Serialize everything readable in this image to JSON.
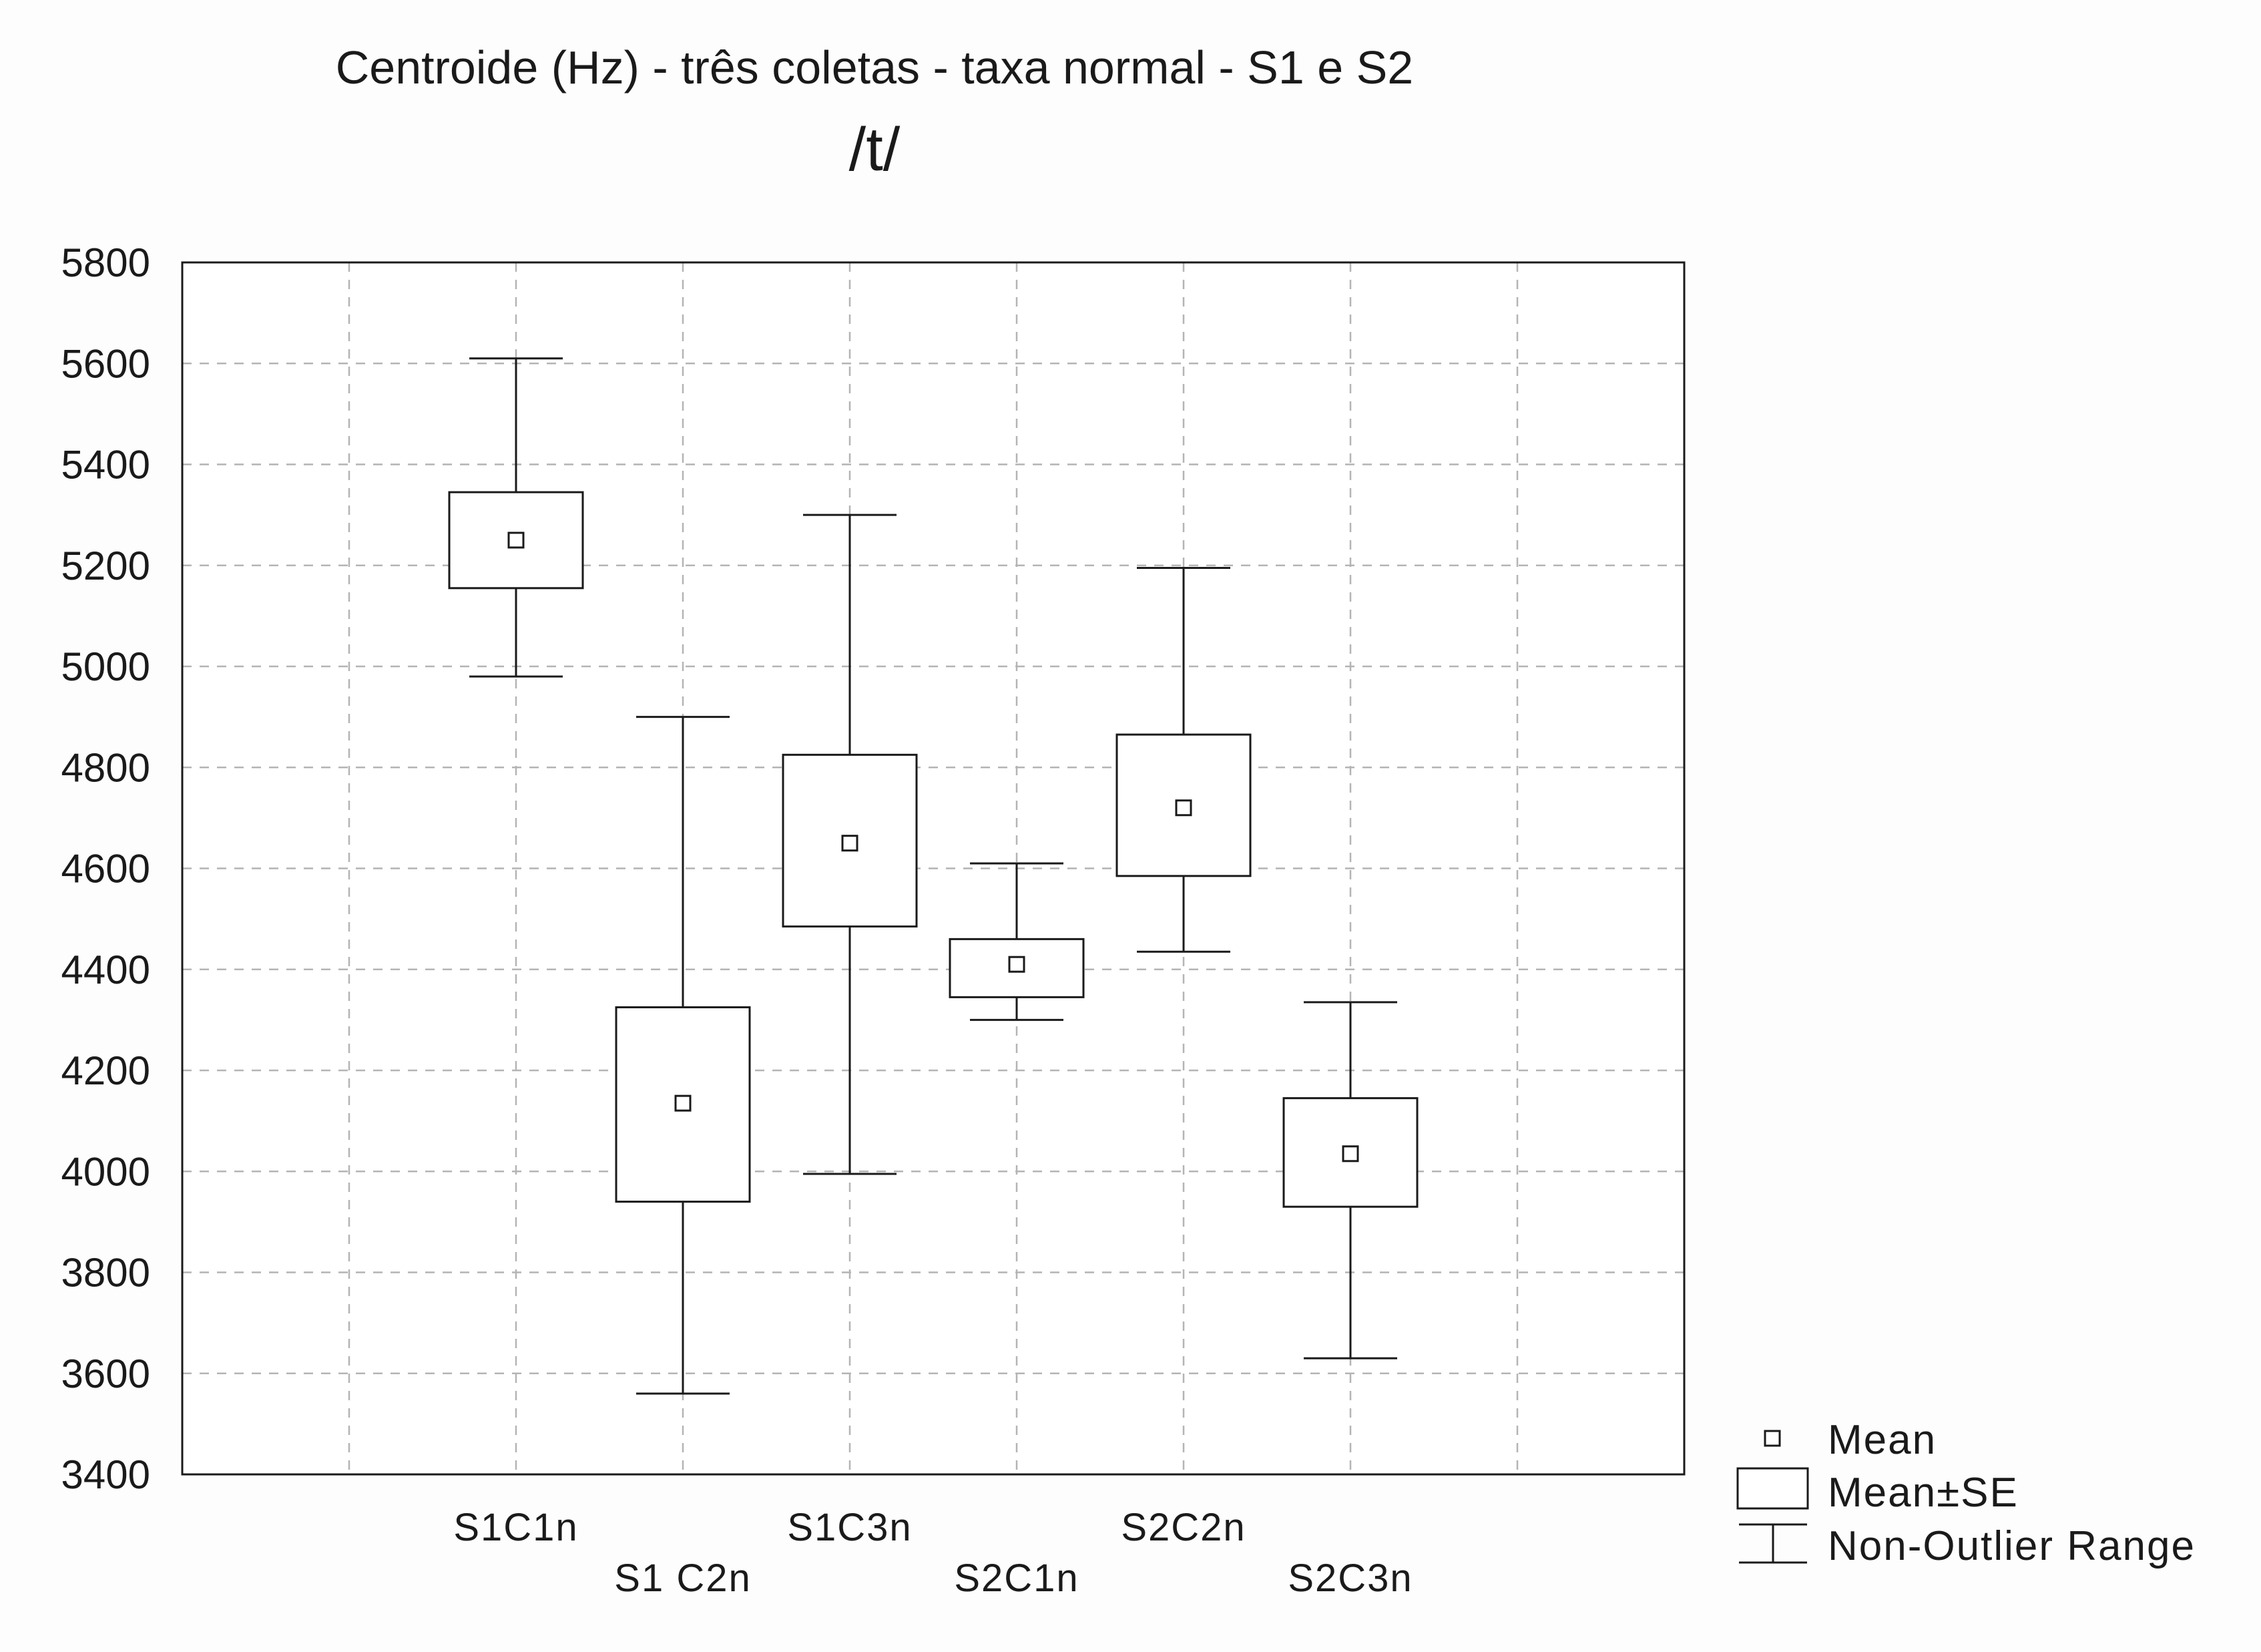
{
  "chart_data": {
    "type": "boxplot",
    "title": "Centroide (Hz) - três coletas - taxa normal - S1 e S2",
    "subtitle": "/t/",
    "xlabel": "",
    "ylabel": "",
    "ylim": [
      3400,
      5800
    ],
    "yticks": [
      3400,
      3600,
      3800,
      4000,
      4200,
      4400,
      4600,
      4800,
      5000,
      5200,
      5400,
      5600,
      5800
    ],
    "grid": true,
    "legend_position": "bottom-right",
    "categories": [
      "S1C1n",
      "S1 C2n",
      "S1C3n",
      "S2C1n",
      "S2C2n",
      "S2C3n"
    ],
    "series": [
      {
        "mean": 5250,
        "se_low": 5155,
        "se_high": 5345,
        "whisker_low": 4980,
        "whisker_high": 5610
      },
      {
        "mean": 4135,
        "se_low": 3940,
        "se_high": 4325,
        "whisker_low": 3560,
        "whisker_high": 4900
      },
      {
        "mean": 4650,
        "se_low": 4485,
        "se_high": 4825,
        "whisker_low": 3995,
        "whisker_high": 5300
      },
      {
        "mean": 4410,
        "se_low": 4345,
        "se_high": 4460,
        "whisker_low": 4300,
        "whisker_high": 4610
      },
      {
        "mean": 4720,
        "se_low": 4585,
        "se_high": 4865,
        "whisker_low": 4435,
        "whisker_high": 5195
      },
      {
        "mean": 4035,
        "se_low": 3930,
        "se_high": 4145,
        "whisker_low": 3630,
        "whisker_high": 4335
      }
    ],
    "legend": [
      "Mean",
      "Mean±SE",
      "Non-Outlier Range"
    ],
    "colors": {
      "line": "#1a1a1a",
      "grid": "#b4b4b4",
      "background": "#ffffff"
    }
  }
}
